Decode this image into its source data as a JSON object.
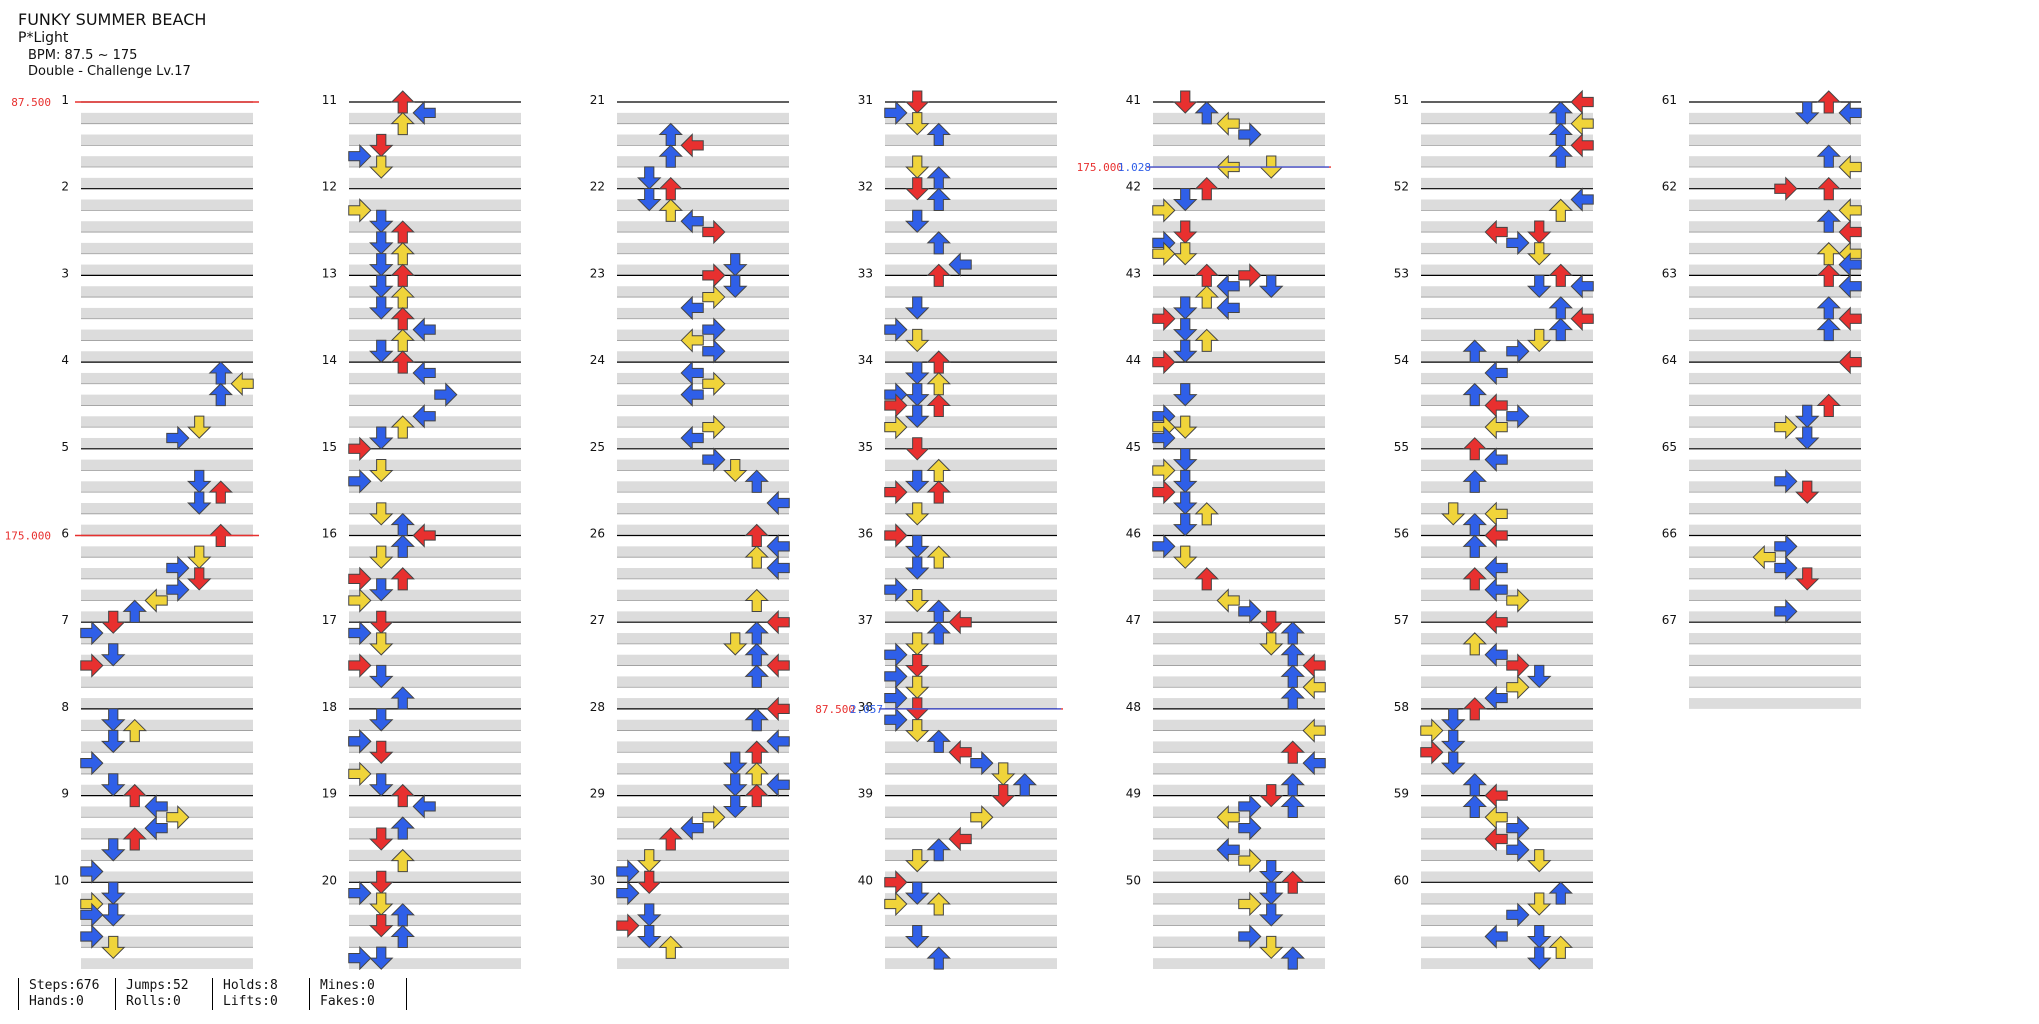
{
  "song": {
    "title": "FUNKY SUMMER BEACH",
    "artist": "P*Light",
    "bpm_label": "BPM: 87.5 ~ 175",
    "difficulty": "Double - Challenge Lv.17"
  },
  "stats": [
    [
      "Steps:676",
      "Hands:0"
    ],
    [
      "Jumps:52",
      "Rolls:0"
    ],
    [
      "Holds:8",
      "Lifts:0"
    ],
    [
      "Mines:0",
      "Fakes:0"
    ]
  ],
  "chart_data": {
    "type": "step-chart",
    "measures_total": 67,
    "columns": 7,
    "measures_per_column": 10,
    "lanes": 8,
    "arrow_colors": {
      "quarter": "#e8302f",
      "eighth": "#2f5fe8",
      "sixteenth": "#f0d43a",
      "twelfth": "#4ad6e6",
      "hold": "#8fd18a",
      "orange": "#f08a2f"
    },
    "bpm_changes": [
      {
        "measure": 1,
        "offset": 0.0,
        "label": "87.500",
        "color": "#e8302f"
      },
      {
        "measure": 6,
        "offset": 0.0,
        "label": "175.000",
        "color": "#e8302f"
      },
      {
        "measure": 38,
        "offset": 0.0,
        "label": "87.500",
        "color": "#e8302f"
      },
      {
        "measure": 42,
        "offset": -0.25,
        "label": "175.000",
        "color": "#e8302f"
      }
    ],
    "stops": [
      {
        "measure": 38,
        "offset": 0.0,
        "label": "2.057",
        "color": "#2f5fe8"
      },
      {
        "measure": 42,
        "offset": -0.25,
        "label": "1.028",
        "color": "#2f5fe8"
      }
    ]
  }
}
